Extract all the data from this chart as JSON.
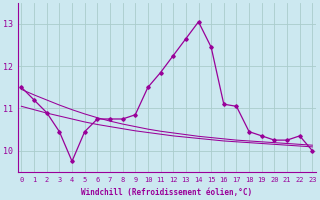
{
  "x": [
    0,
    1,
    2,
    3,
    4,
    5,
    6,
    7,
    8,
    9,
    10,
    11,
    12,
    13,
    14,
    15,
    16,
    17,
    18,
    19,
    20,
    21,
    22,
    23
  ],
  "line_main": [
    11.5,
    11.2,
    10.9,
    10.45,
    9.75,
    10.45,
    10.75,
    10.75,
    10.75,
    10.85,
    11.5,
    11.85,
    12.25,
    12.65,
    13.05,
    12.45,
    11.1,
    11.05,
    10.45,
    10.35,
    10.25,
    10.25,
    10.35,
    10.0
  ],
  "line_upper": [
    11.45,
    11.32,
    11.2,
    11.08,
    10.97,
    10.87,
    10.78,
    10.7,
    10.63,
    10.57,
    10.51,
    10.46,
    10.42,
    10.38,
    10.34,
    10.31,
    10.28,
    10.25,
    10.23,
    10.21,
    10.19,
    10.17,
    10.15,
    10.13
  ],
  "line_lower": [
    11.05,
    10.97,
    10.89,
    10.82,
    10.75,
    10.68,
    10.62,
    10.57,
    10.52,
    10.47,
    10.43,
    10.39,
    10.35,
    10.32,
    10.29,
    10.26,
    10.23,
    10.21,
    10.19,
    10.17,
    10.15,
    10.13,
    10.11,
    10.09
  ],
  "ylim_min": 9.5,
  "ylim_max": 13.5,
  "xlim_min": -0.3,
  "xlim_max": 23.3,
  "yticks": [
    10,
    11,
    12,
    13
  ],
  "xticks": [
    0,
    1,
    2,
    3,
    4,
    5,
    6,
    7,
    8,
    9,
    10,
    11,
    12,
    13,
    14,
    15,
    16,
    17,
    18,
    19,
    20,
    21,
    22,
    23
  ],
  "xlabel": "Windchill (Refroidissement éolien,°C)",
  "line_color": "#990099",
  "bg_color": "#cce8f0",
  "grid_color": "#aacccc",
  "marker": "D",
  "marker_size": 1.8,
  "lw_main": 0.9,
  "lw_trend": 0.75,
  "tick_fontsize": 5,
  "xlabel_fontsize": 5.5,
  "ytick_fontsize": 6
}
